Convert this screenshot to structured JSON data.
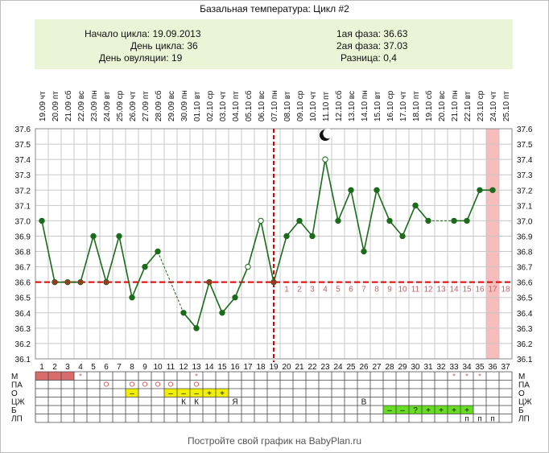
{
  "header": {
    "title": "Базальная температура: Цикл #2"
  },
  "info": {
    "cycle_start": "Начало цикла: 19.09.2013",
    "cycle_day": "День цикла: 36",
    "ovulation_day": "День овуляции: 19",
    "phase1": "1ая фаза: 36.63",
    "phase2": "2ая фаза: 37.03",
    "difference": "Разница: 0,4"
  },
  "footer": {
    "text": "Постройте свой график на BabyPlan.ru"
  },
  "colors": {
    "line": "#1a6b1a",
    "coverline": "#dd0000",
    "grid": "#c8c8c8",
    "info_bg": "#eaf5d8",
    "highlight": "#f7bcbc",
    "menses": "#d96b6b",
    "yellow": "#f0f000",
    "green": "#66dd22"
  },
  "chart_data": {
    "type": "line",
    "title": "Базальная температура: Цикл #2",
    "xlabel": "",
    "ylabel": "",
    "ylim": [
      36.1,
      37.6
    ],
    "yticks": [
      "37.6",
      "37.5",
      "37.4",
      "37.3",
      "37.2",
      "37.1",
      "37.0",
      "36.9",
      "36.8",
      "36.7",
      "36.6",
      "36.5",
      "36.4",
      "36.3",
      "36.2",
      "36.1"
    ],
    "grid": true,
    "days": [
      "1",
      "2",
      "3",
      "4",
      "5",
      "6",
      "7",
      "8",
      "9",
      "10",
      "11",
      "12",
      "13",
      "14",
      "15",
      "16",
      "17",
      "18",
      "19",
      "20",
      "21",
      "22",
      "23",
      "24",
      "25",
      "26",
      "27",
      "28",
      "29",
      "30",
      "31",
      "32",
      "33",
      "34",
      "35",
      "36",
      "37"
    ],
    "dates": [
      "19.09",
      "20.09",
      "21.09",
      "22.09",
      "23.09",
      "24.09",
      "25.09",
      "26.09",
      "27.09",
      "28.09",
      "29.09",
      "30.09",
      "01.10",
      "02.10",
      "03.10",
      "04.10",
      "05.10",
      "06.10",
      "07.10",
      "08.10",
      "09.10",
      "10.10",
      "11.10",
      "12.10",
      "13.10",
      "14.10",
      "15.10",
      "16.10",
      "17.10",
      "18.10",
      "19.10",
      "20.10",
      "21.10",
      "22.10",
      "23.10",
      "24.10",
      "25.10"
    ],
    "weekdays": [
      "чт",
      "пт",
      "сб",
      "вс",
      "пн",
      "вт",
      "ср",
      "чт",
      "пт",
      "сб",
      "вс",
      "пн",
      "вт",
      "ср",
      "чт",
      "пт",
      "сб",
      "вс",
      "пн",
      "вт",
      "ср",
      "чт",
      "пт",
      "сб",
      "вс",
      "пн",
      "вт",
      "ср",
      "чт",
      "пт",
      "сб",
      "вс",
      "пн",
      "вт",
      "ср",
      "чт",
      "пт"
    ],
    "temperatures": [
      37.0,
      36.6,
      36.6,
      36.6,
      36.9,
      36.6,
      36.9,
      36.5,
      36.7,
      36.8,
      null,
      36.4,
      36.3,
      36.6,
      36.4,
      36.5,
      36.7,
      37.0,
      36.6,
      36.9,
      37.0,
      36.9,
      37.4,
      37.0,
      37.2,
      36.8,
      37.2,
      37.0,
      36.9,
      37.1,
      37.0,
      null,
      37.0,
      37.0,
      37.2,
      37.2,
      null
    ],
    "open_markers": [
      17,
      18,
      23
    ],
    "coverline": 36.6,
    "ovulation_day": 19,
    "phase2_day_labels": [
      "1",
      "2",
      "3",
      "4",
      "5",
      "6",
      "7",
      "8",
      "9",
      "10",
      "11",
      "12",
      "13",
      "14",
      "15",
      "16",
      "17",
      "18"
    ],
    "highlight_day": 36,
    "moon_day": 23,
    "rows": {
      "labels": [
        "М",
        "ПА",
        "О",
        "ЦЖ",
        "Б",
        "ЛП"
      ],
      "star_days_M": [
        4,
        13,
        33,
        34,
        35
      ],
      "menses_days": [
        1,
        2,
        3
      ],
      "pa_days": [
        6,
        8,
        9,
        10,
        11,
        13
      ],
      "o_cells": [
        {
          "day": 8,
          "s": "–"
        },
        {
          "day": 11,
          "s": "–"
        },
        {
          "day": 12,
          "s": "–"
        },
        {
          "day": 13,
          "s": "–"
        },
        {
          "day": 14,
          "s": "+"
        },
        {
          "day": 15,
          "s": "+"
        }
      ],
      "cz_cells": [
        {
          "day": 12,
          "s": "К"
        },
        {
          "day": 13,
          "s": "К"
        },
        {
          "day": 16,
          "s": "Я"
        },
        {
          "day": 26,
          "s": "В"
        }
      ],
      "b_cells": [
        {
          "day": 28,
          "s": "–"
        },
        {
          "day": 29,
          "s": "–"
        },
        {
          "day": 30,
          "s": "?"
        },
        {
          "day": 31,
          "s": "+"
        },
        {
          "day": 32,
          "s": "+"
        },
        {
          "day": 33,
          "s": "+"
        },
        {
          "day": 34,
          "s": "+"
        }
      ],
      "lp_days": [
        34,
        35,
        36
      ]
    }
  }
}
